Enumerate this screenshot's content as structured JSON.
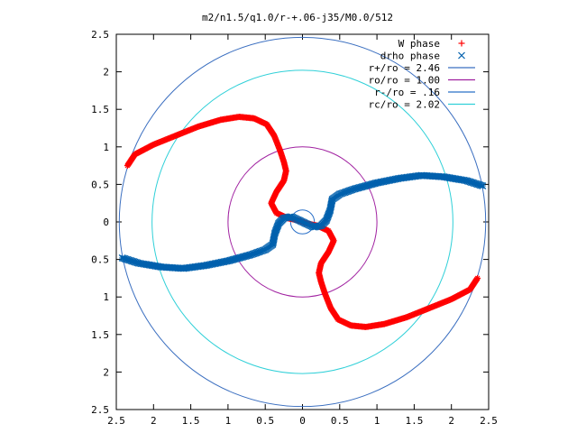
{
  "chart_data": {
    "type": "scatter",
    "title": "m2/n1.5/q1.0/r-+.06-j35/M0.0/512",
    "xlabel": "",
    "ylabel": "",
    "xlim": [
      -2.5,
      2.5
    ],
    "ylim": [
      -2.5,
      2.5
    ],
    "x_tick_values": [
      -2.5,
      -2,
      -1.5,
      -1,
      -0.5,
      0,
      0.5,
      1,
      1.5,
      2,
      2.5
    ],
    "x_tick_labels": [
      "2.5",
      "2",
      "1.5",
      "1",
      "0.5",
      "0",
      "0.5",
      "1",
      "1.5",
      "2",
      "2.5"
    ],
    "y_tick_values": [
      2.5,
      2,
      1.5,
      1,
      0.5,
      0,
      -0.5,
      -1,
      -1.5,
      -2,
      -2.5
    ],
    "y_tick_labels": [
      "2.5",
      "2",
      "1.5",
      "1",
      "0.5",
      "0",
      "0.5",
      "1",
      "1.5",
      "2",
      "2.5"
    ],
    "grid": false,
    "legend_position": "top-right",
    "series": [
      {
        "name": "W phase",
        "marker": "+",
        "color": "#ff0000",
        "points": [
          [
            -2.35,
            0.75
          ],
          [
            -2.25,
            0.9
          ],
          [
            -2.0,
            1.03
          ],
          [
            -1.7,
            1.15
          ],
          [
            -1.4,
            1.27
          ],
          [
            -1.1,
            1.36
          ],
          [
            -0.85,
            1.4
          ],
          [
            -0.65,
            1.38
          ],
          [
            -0.48,
            1.3
          ],
          [
            -0.38,
            1.15
          ],
          [
            -0.3,
            0.95
          ],
          [
            -0.25,
            0.8
          ],
          [
            -0.22,
            0.68
          ],
          [
            -0.25,
            0.55
          ],
          [
            -0.35,
            0.4
          ],
          [
            -0.42,
            0.25
          ],
          [
            -0.35,
            0.12
          ],
          [
            -0.2,
            0.05
          ],
          [
            -0.05,
            0.02
          ],
          [
            0.05,
            -0.02
          ],
          [
            0.2,
            -0.05
          ],
          [
            0.35,
            -0.12
          ],
          [
            0.42,
            -0.25
          ],
          [
            0.35,
            -0.4
          ],
          [
            0.25,
            -0.55
          ],
          [
            0.22,
            -0.68
          ],
          [
            0.25,
            -0.8
          ],
          [
            0.3,
            -0.95
          ],
          [
            0.38,
            -1.15
          ],
          [
            0.48,
            -1.3
          ],
          [
            0.65,
            -1.38
          ],
          [
            0.85,
            -1.4
          ],
          [
            1.1,
            -1.36
          ],
          [
            1.4,
            -1.27
          ],
          [
            1.7,
            -1.15
          ],
          [
            2.0,
            -1.03
          ],
          [
            2.25,
            -0.9
          ],
          [
            2.35,
            -0.75
          ]
        ]
      },
      {
        "name": "drho phase",
        "marker": "x",
        "color": "#0060ad",
        "points": [
          [
            2.42,
            0.48
          ],
          [
            2.2,
            0.55
          ],
          [
            1.9,
            0.6
          ],
          [
            1.6,
            0.62
          ],
          [
            1.3,
            0.58
          ],
          [
            1.0,
            0.52
          ],
          [
            0.7,
            0.44
          ],
          [
            0.5,
            0.37
          ],
          [
            0.4,
            0.3
          ],
          [
            0.37,
            0.15
          ],
          [
            0.32,
            0.02
          ],
          [
            0.25,
            -0.05
          ],
          [
            0.15,
            -0.07
          ],
          [
            -0.15,
            0.07
          ],
          [
            -0.25,
            0.05
          ],
          [
            -0.32,
            -0.02
          ],
          [
            -0.37,
            -0.15
          ],
          [
            -0.4,
            -0.3
          ],
          [
            -0.5,
            -0.37
          ],
          [
            -0.7,
            -0.44
          ],
          [
            -1.0,
            -0.52
          ],
          [
            -1.3,
            -0.58
          ],
          [
            -1.6,
            -0.62
          ],
          [
            -1.9,
            -0.6
          ],
          [
            -2.2,
            -0.55
          ],
          [
            -2.42,
            -0.48
          ]
        ]
      },
      {
        "name": "r+/ro = 2.46",
        "type": "circle",
        "radius": 2.46,
        "color": "#3b6fc0"
      },
      {
        "name": "ro/ro = 1.00",
        "type": "circle",
        "radius": 1.0,
        "color": "#a020a0"
      },
      {
        "name": "r-/ro = .16",
        "type": "circle",
        "radius": 0.16,
        "color": "#2a70c8"
      },
      {
        "name": "rc/ro = 2.02",
        "type": "circle",
        "radius": 2.02,
        "color": "#30d0d8"
      }
    ]
  }
}
